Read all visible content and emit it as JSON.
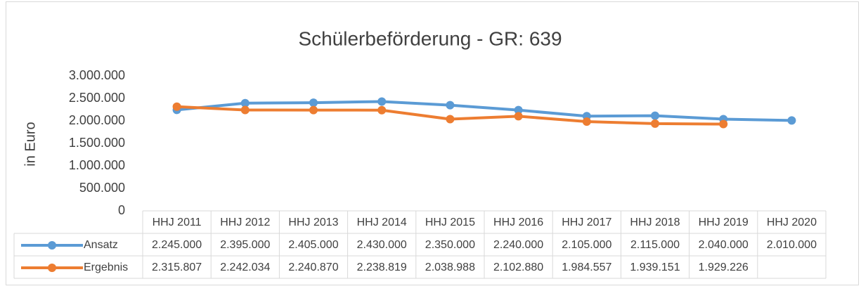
{
  "chart_data": {
    "type": "line",
    "title": "Schülerbeförderung - GR: 639",
    "y_label": "in Euro",
    "categories": [
      "HHJ 2011",
      "HHJ 2012",
      "HHJ 2013",
      "HHJ 2014",
      "HHJ 2015",
      "HHJ 2016",
      "HHJ 2017",
      "HHJ 2018",
      "HHJ 2019",
      "HHJ 2020"
    ],
    "series": [
      {
        "name": "Ansatz",
        "color": "#5b9bd5",
        "values": [
          2245000,
          2395000,
          2405000,
          2430000,
          2350000,
          2240000,
          2105000,
          2115000,
          2040000,
          2010000
        ],
        "value_labels": [
          "2.245.000",
          "2.395.000",
          "2.405.000",
          "2.430.000",
          "2.350.000",
          "2.240.000",
          "2.105.000",
          "2.115.000",
          "2.040.000",
          "2.010.000"
        ]
      },
      {
        "name": "Ergebnis",
        "color": "#ed7d31",
        "values": [
          2315807,
          2242034,
          2240870,
          2238819,
          2038988,
          2102880,
          1984557,
          1939151,
          1929226,
          null
        ],
        "value_labels": [
          "2.315.807",
          "2.242.034",
          "2.240.870",
          "2.238.819",
          "2.038.988",
          "2.102.880",
          "1.984.557",
          "1.939.151",
          "1.929.226",
          null
        ]
      }
    ],
    "ylim": [
      0,
      3000000
    ],
    "yticks": [
      0,
      {
        "value": 500000,
        "label": "500.000"
      },
      {
        "value": 1000000,
        "label": "1.000.000"
      },
      {
        "value": 1500000,
        "label": "1.500.000"
      },
      {
        "value": 2000000,
        "label": "2.000.000"
      },
      {
        "value": 2500000,
        "label": "2.500.000"
      },
      {
        "value": 3000000,
        "label": "3.000.000"
      }
    ],
    "grid": false
  }
}
